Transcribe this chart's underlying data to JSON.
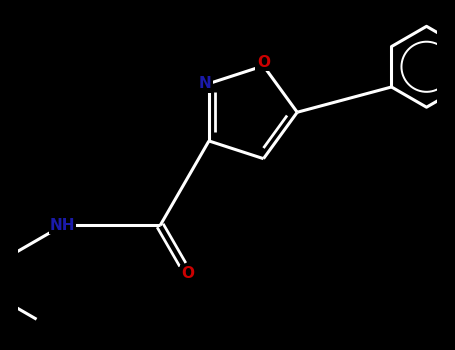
{
  "bg_color": "#000000",
  "bond_color": "#ffffff",
  "N_color": "#1a1aaa",
  "O_color": "#cc0000",
  "lw": 2.2,
  "figsize": [
    4.55,
    3.5
  ],
  "dpi": 100,
  "xlim": [
    -2.8,
    3.2
  ],
  "ylim": [
    -2.8,
    2.2
  ]
}
